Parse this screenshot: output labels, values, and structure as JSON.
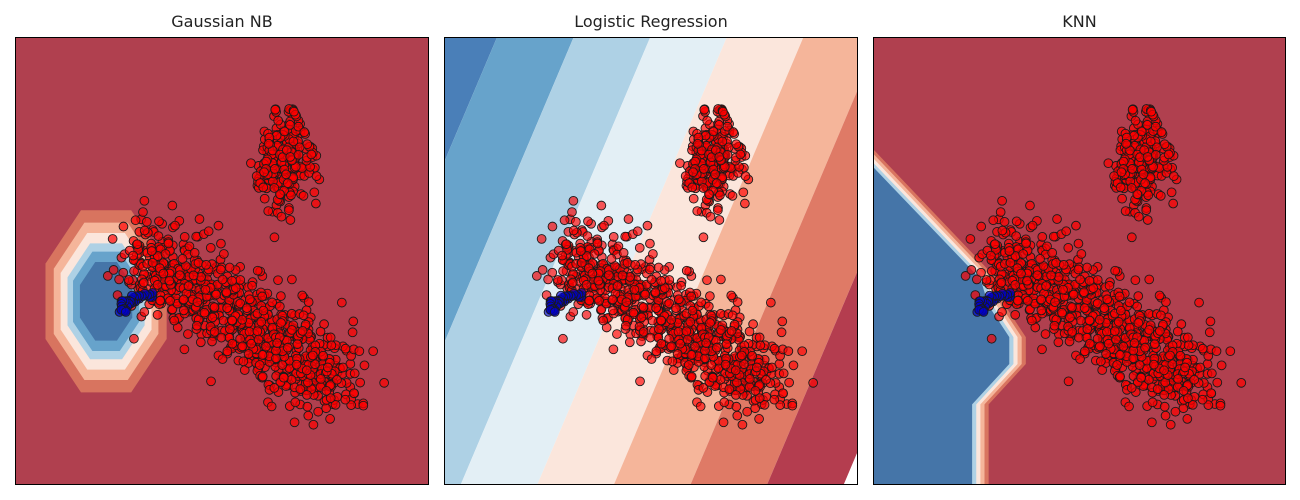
{
  "chart_data": [
    {
      "type": "scatter",
      "title": "Gaussian NB",
      "boundary": "gaussian_blob",
      "background_color": "#b0404f",
      "point_colors": {
        "positive": "#ff0000",
        "negative": "#0000cc"
      },
      "series": [
        {
          "cluster": "upper",
          "center": [
            0.65,
            0.73
          ],
          "spread": [
            0.05,
            0.12
          ],
          "count": 260
        },
        {
          "cluster": "lower",
          "center": [
            0.56,
            0.27
          ],
          "spread": [
            0.2,
            0.1
          ],
          "count": 900
        },
        {
          "cluster": "arc",
          "count": 40
        }
      ],
      "xlim": [
        0,
        1
      ],
      "ylim": [
        0,
        1
      ],
      "ticks": "none"
    },
    {
      "type": "scatter",
      "title": "Logistic Regression",
      "boundary": "linear_bands",
      "band_colors": [
        "#2d5f9a",
        "#4a7fb8",
        "#67a3cb",
        "#aed1e5",
        "#e3eff5",
        "#fbe6dc",
        "#f5b59a",
        "#df7a66",
        "#b43d4f"
      ],
      "point_colors": {
        "positive": "#ff0000",
        "negative": "#0000cc"
      },
      "series": [
        {
          "cluster": "upper",
          "center": [
            0.65,
            0.73
          ],
          "spread": [
            0.05,
            0.12
          ],
          "count": 260
        },
        {
          "cluster": "lower",
          "center": [
            0.56,
            0.27
          ],
          "spread": [
            0.2,
            0.1
          ],
          "count": 900
        },
        {
          "cluster": "arc",
          "count": 40
        }
      ],
      "xlim": [
        0,
        1
      ],
      "ylim": [
        0,
        1
      ],
      "ticks": "none"
    },
    {
      "type": "scatter",
      "title": "KNN",
      "boundary": "knn_region",
      "background_color": "#b0404f",
      "point_colors": {
        "positive": "#ff0000",
        "negative": "#0000cc"
      },
      "series": [
        {
          "cluster": "upper",
          "center": [
            0.65,
            0.73
          ],
          "spread": [
            0.05,
            0.12
          ],
          "count": 260
        },
        {
          "cluster": "lower",
          "center": [
            0.56,
            0.27
          ],
          "spread": [
            0.2,
            0.1
          ],
          "count": 900
        },
        {
          "cluster": "arc",
          "count": 40
        }
      ],
      "xlim": [
        0,
        1
      ],
      "ylim": [
        0,
        1
      ],
      "ticks": "none"
    }
  ]
}
